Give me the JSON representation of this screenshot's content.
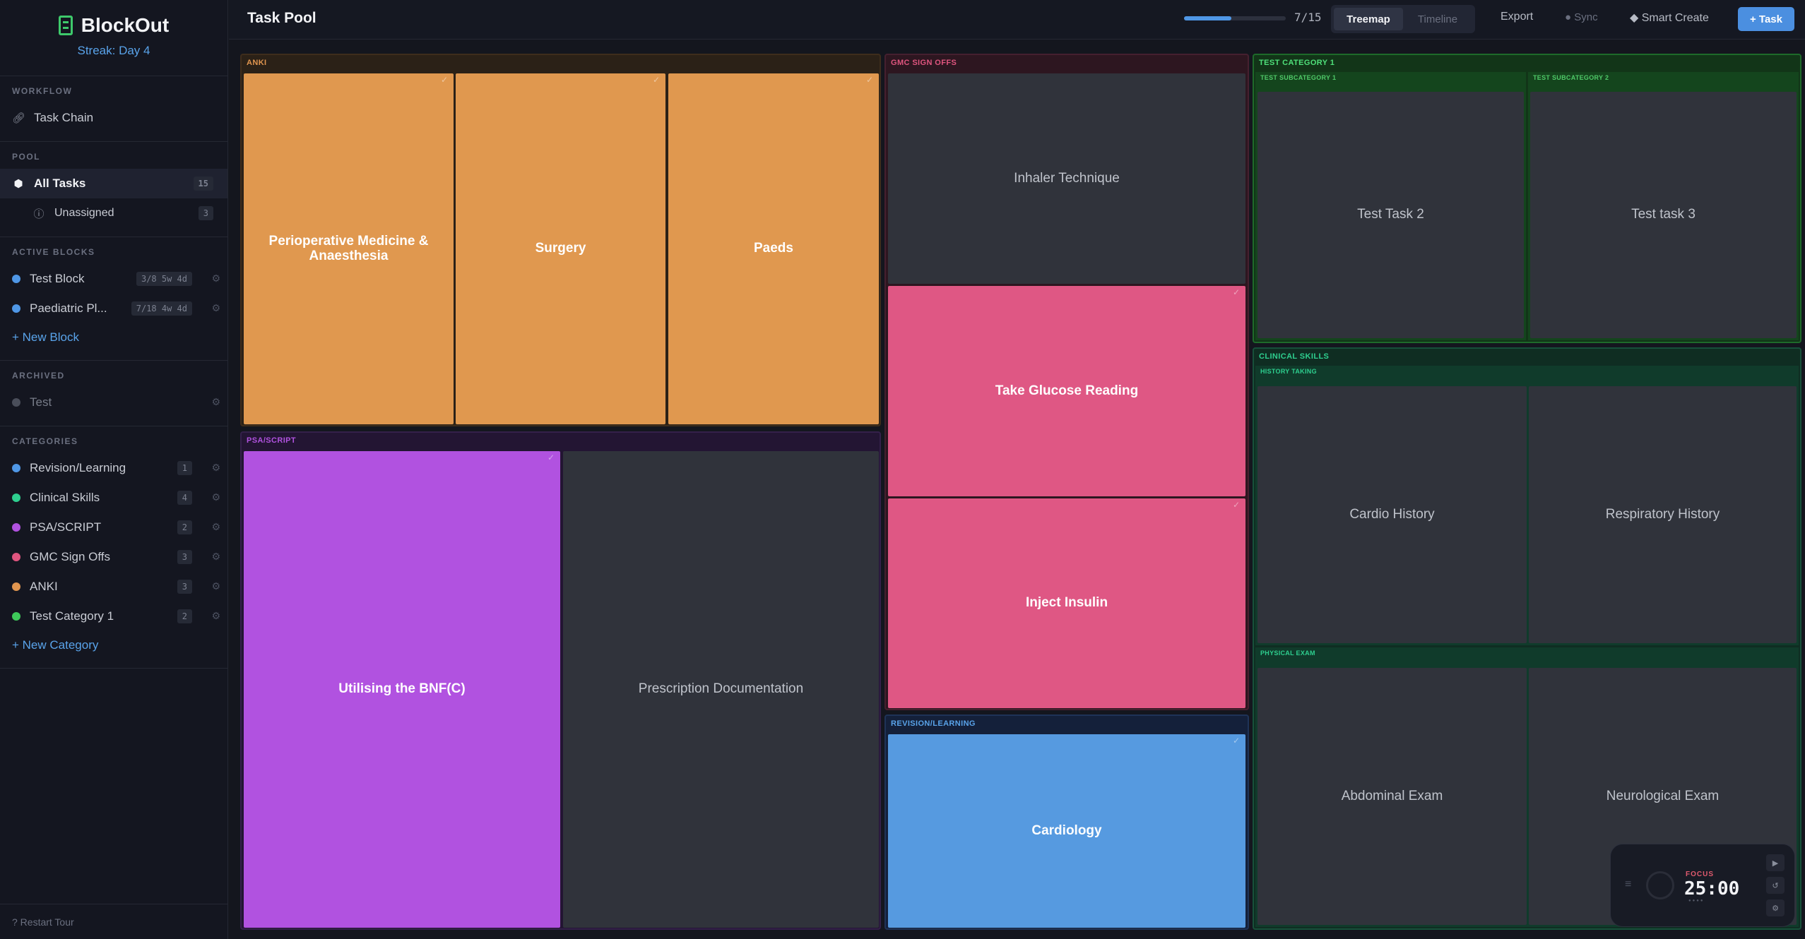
{
  "app": {
    "name": "BlockOut",
    "streak": "Streak: Day 4"
  },
  "sidebar": {
    "workflow": {
      "title": "WORKFLOW",
      "task_chain": "Task Chain"
    },
    "pool": {
      "title": "POOL",
      "all_tasks": "All Tasks",
      "all_tasks_count": "15",
      "unassigned": "Unassigned",
      "unassigned_count": "3"
    },
    "active_blocks": {
      "title": "ACTIVE BLOCKS",
      "items": [
        {
          "label": "Test Block",
          "meta": "3/8 5w 4d",
          "color": "#4f97e6"
        },
        {
          "label": "Paediatric Pl...",
          "meta": "7/18 4w 4d",
          "color": "#4f97e6"
        }
      ],
      "new_label": "+ New Block"
    },
    "archived": {
      "title": "ARCHIVED",
      "items": [
        {
          "label": "Test",
          "color": "#4a4e5a"
        }
      ]
    },
    "categories": {
      "title": "CATEGORIES",
      "items": [
        {
          "label": "Revision/Learning",
          "count": "1",
          "color": "#4f97e6"
        },
        {
          "label": "Clinical Skills",
          "count": "4",
          "color": "#2ecf8f"
        },
        {
          "label": "PSA/SCRIPT",
          "count": "2",
          "color": "#b152e0"
        },
        {
          "label": "GMC Sign Offs",
          "count": "3",
          "color": "#e0557f"
        },
        {
          "label": "ANKI",
          "count": "3",
          "color": "#e0954f"
        },
        {
          "label": "Test Category 1",
          "count": "2",
          "color": "#3ec95a"
        }
      ],
      "new_label": "+ New Category"
    },
    "restart_tour": "? Restart Tour"
  },
  "header": {
    "title": "Task Pool",
    "progress": {
      "done": 7,
      "total": 15,
      "text": "7/15"
    },
    "views": {
      "treemap": "Treemap",
      "timeline": "Timeline",
      "active": "treemap"
    },
    "export": "Export",
    "sync": "● Sync",
    "smart_create": "◆ Smart Create",
    "new_task": "+ Task"
  },
  "treemap": {
    "anki": {
      "label": "ANKI",
      "tasks": [
        "Perioperative Medicine & Anaesthesia",
        "Surgery",
        "Paeds"
      ]
    },
    "psa": {
      "label": "PSA/SCRIPT",
      "tasks": [
        "Utilising the BNF(C)",
        "Prescription Documentation"
      ]
    },
    "gmc": {
      "label": "GMC SIGN OFFS",
      "tasks": [
        "Inhaler Technique",
        "Take Glucose Reading",
        "Inject Insulin"
      ]
    },
    "revision": {
      "label": "REVISION/LEARNING",
      "tasks": [
        "Cardiology"
      ]
    },
    "test_cat": {
      "label": "TEST CATEGORY 1",
      "sub1": "TEST SUBCATEGORY 1",
      "sub2": "TEST SUBCATEGORY 2",
      "tasks": [
        "Test Task 2",
        "Test task 3"
      ]
    },
    "clinical": {
      "label": "CLINICAL SKILLS",
      "sub1": "HISTORY TAKING",
      "sub2": "PHYSICAL EXAM",
      "tasks": [
        "Cardio History",
        "Respiratory History",
        "Abdominal Exam",
        "Neurological Exam"
      ]
    },
    "check_mark": "✓"
  },
  "timer": {
    "mode": "FOCUS",
    "time": "25:00",
    "sessions": "●●●●"
  }
}
